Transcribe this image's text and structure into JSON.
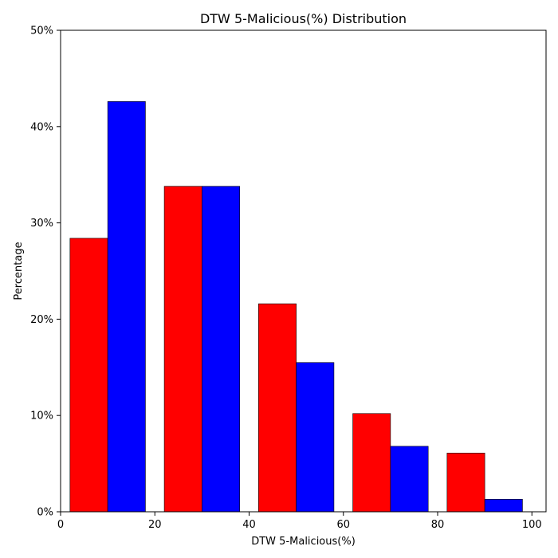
{
  "chart_data": {
    "type": "bar",
    "title": "DTW 5-Malicious(%) Distribution",
    "xlabel": "DTW 5-Malicious(%)",
    "ylabel": "Percentage",
    "xlim": [
      0,
      103
    ],
    "ylim": [
      0,
      50
    ],
    "x_ticks": [
      0,
      20,
      40,
      60,
      80,
      100
    ],
    "y_ticks": [
      0,
      10,
      20,
      30,
      40,
      50
    ],
    "y_tick_labels": [
      "0%",
      "10%",
      "20%",
      "30%",
      "40%",
      "50%"
    ],
    "grid": false,
    "legend": "none",
    "bin_edges": [
      2,
      22,
      42,
      62,
      82,
      102
    ],
    "series": [
      {
        "color": "#ff0000",
        "values": [
          28.4,
          33.8,
          21.6,
          10.2,
          6.1
        ]
      },
      {
        "color": "#0000ff",
        "values": [
          42.6,
          33.8,
          15.5,
          6.8,
          1.3
        ]
      }
    ]
  }
}
